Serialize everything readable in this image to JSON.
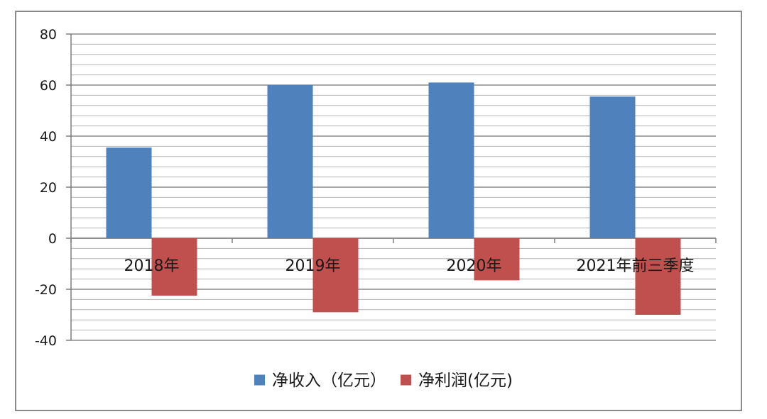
{
  "chart_data": {
    "type": "bar",
    "categories": [
      "2018年",
      "2019年",
      "2020年",
      "2021年前三季度"
    ],
    "series": [
      {
        "name": "净收入（亿元）",
        "color": "#4f81bd",
        "values": [
          35.5,
          60,
          61,
          55.5
        ]
      },
      {
        "name": "净利润(亿元)",
        "color": "#c0504d",
        "values": [
          -22.5,
          -29,
          -16.5,
          -30
        ]
      }
    ],
    "ylim": [
      -40,
      80
    ],
    "yticks": [
      80,
      60,
      40,
      20,
      0,
      -20,
      -40
    ],
    "minor_grid_step": 4,
    "grid": true,
    "legend_position": "bottom",
    "title": "",
    "xlabel": "",
    "ylabel": ""
  }
}
